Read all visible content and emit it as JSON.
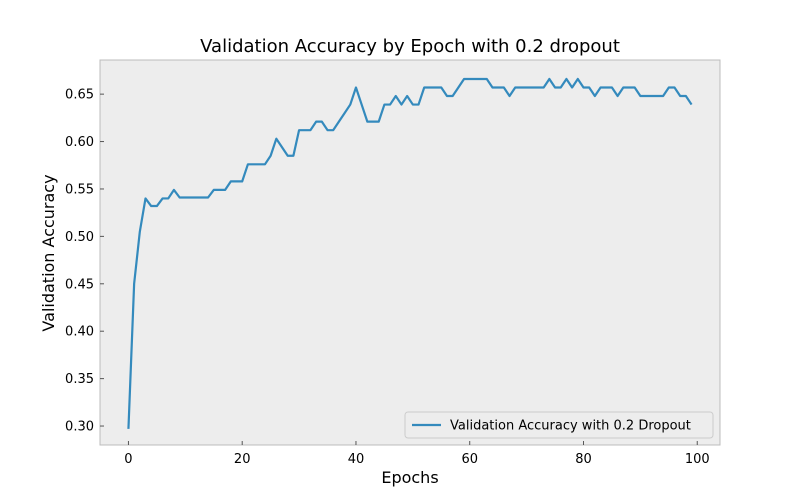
{
  "chart_data": {
    "type": "line",
    "title": "Validation Accuracy by Epoch with 0.2 dropout",
    "xlabel": "Epochs",
    "ylabel": "Validation Accuracy",
    "xlim": [
      -5,
      104
    ],
    "ylim": [
      0.28,
      0.686
    ],
    "xticks": [
      0,
      20,
      40,
      60,
      80,
      100
    ],
    "xtick_labels": [
      "0",
      "20",
      "40",
      "60",
      "80",
      "100"
    ],
    "yticks": [
      0.3,
      0.35,
      0.4,
      0.45,
      0.5,
      0.55,
      0.6,
      0.65
    ],
    "ytick_labels": [
      "0.30",
      "0.35",
      "0.40",
      "0.45",
      "0.50",
      "0.55",
      "0.60",
      "0.65"
    ],
    "grid": false,
    "legend_position": "bottom-right",
    "colors": {
      "plot_background": "#ededed",
      "axes_edge": "#bcbcbc",
      "series_line": "#348abd",
      "tick_color": "#555555"
    },
    "series": [
      {
        "name": "Validation Accuracy with 0.2 Dropout",
        "x": [
          0,
          1,
          2,
          3,
          4,
          5,
          6,
          7,
          8,
          9,
          10,
          11,
          12,
          13,
          14,
          15,
          16,
          17,
          18,
          19,
          20,
          21,
          22,
          23,
          24,
          25,
          26,
          27,
          28,
          29,
          30,
          31,
          32,
          33,
          34,
          35,
          36,
          37,
          38,
          39,
          40,
          41,
          42,
          43,
          44,
          45,
          46,
          47,
          48,
          49,
          50,
          51,
          52,
          53,
          54,
          55,
          56,
          57,
          58,
          59,
          60,
          61,
          62,
          63,
          64,
          65,
          66,
          67,
          68,
          69,
          70,
          71,
          72,
          73,
          74,
          75,
          76,
          77,
          78,
          79,
          80,
          81,
          82,
          83,
          84,
          85,
          86,
          87,
          88,
          89,
          90,
          91,
          92,
          93,
          94,
          95,
          96,
          97,
          98,
          99
        ],
        "values": [
          0.297,
          0.45,
          0.505,
          0.54,
          0.532,
          0.532,
          0.54,
          0.54,
          0.549,
          0.541,
          0.541,
          0.541,
          0.541,
          0.541,
          0.541,
          0.549,
          0.549,
          0.549,
          0.558,
          0.558,
          0.558,
          0.576,
          0.576,
          0.576,
          0.576,
          0.585,
          0.603,
          0.594,
          0.585,
          0.585,
          0.612,
          0.612,
          0.612,
          0.621,
          0.621,
          0.612,
          0.612,
          0.621,
          0.63,
          0.639,
          0.657,
          0.639,
          0.621,
          0.621,
          0.621,
          0.639,
          0.639,
          0.648,
          0.639,
          0.648,
          0.639,
          0.639,
          0.657,
          0.657,
          0.657,
          0.657,
          0.648,
          0.648,
          0.657,
          0.666,
          0.666,
          0.666,
          0.666,
          0.666,
          0.657,
          0.657,
          0.657,
          0.648,
          0.657,
          0.657,
          0.657,
          0.657,
          0.657,
          0.657,
          0.666,
          0.657,
          0.657,
          0.666,
          0.657,
          0.666,
          0.657,
          0.657,
          0.648,
          0.657,
          0.657,
          0.657,
          0.648,
          0.657,
          0.657,
          0.657,
          0.648,
          0.648,
          0.648,
          0.648,
          0.648,
          0.657,
          0.657,
          0.648,
          0.648,
          0.639
        ]
      }
    ]
  }
}
